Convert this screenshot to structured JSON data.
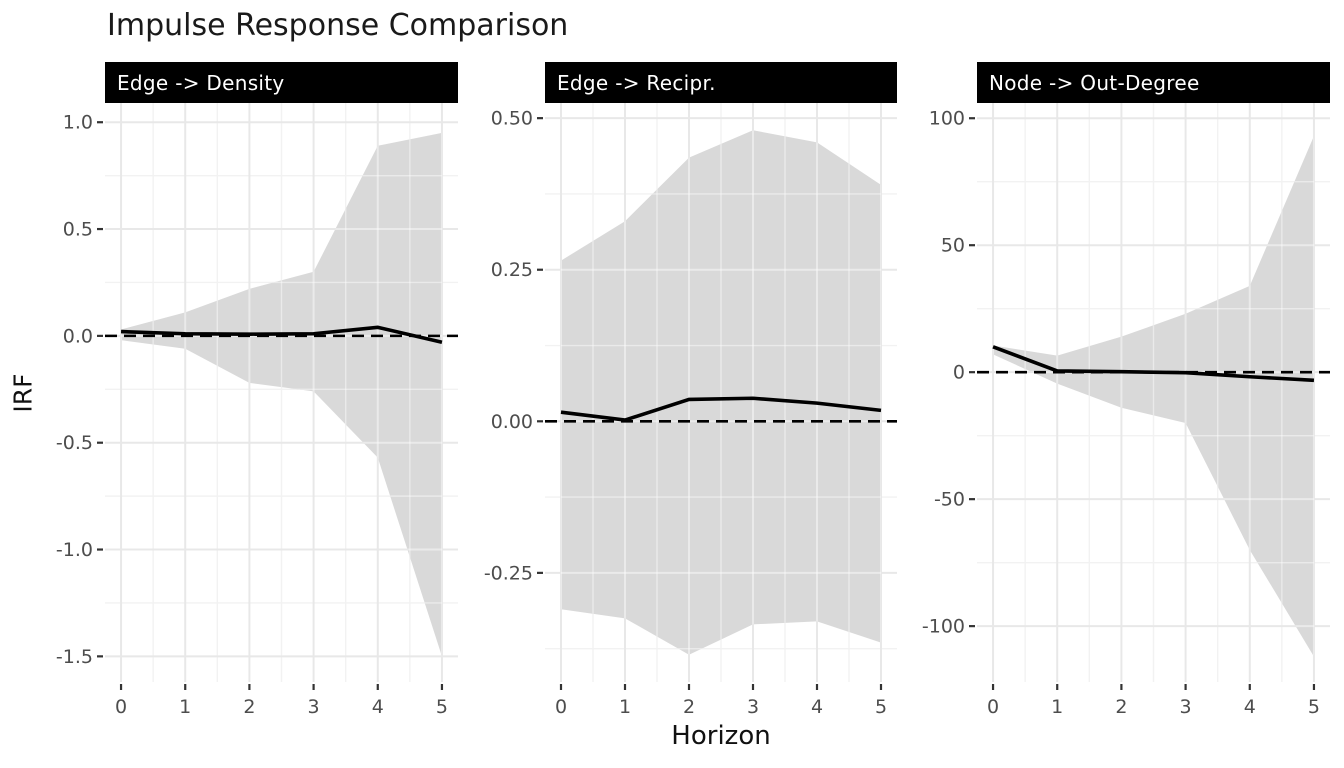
{
  "title": "Impulse Response Comparison",
  "x_axis_label": "Horizon",
  "y_axis_label": "IRF",
  "colors": {
    "strip_bg": "#000000",
    "strip_text": "#ffffff",
    "ribbon": "#d9d9d9",
    "line": "#000000",
    "grid_major": "#e8e8e8",
    "grid_minor": "#f2f2f2",
    "tick_label": "#4d4d4d",
    "tick_mark": "#333333",
    "title_text": "#1a1a1a"
  },
  "chart_data": [
    {
      "type": "line+ribbon",
      "facet_label": "Edge -> Density",
      "x": [
        0,
        1,
        2,
        3,
        4,
        5
      ],
      "x_tick_labels": [
        "0",
        "1",
        "2",
        "3",
        "4",
        "5"
      ],
      "xlim": [
        -0.25,
        5.25
      ],
      "irf": [
        0.02,
        0.01,
        0.008,
        0.01,
        0.04,
        -0.03
      ],
      "ci_upper": [
        0.03,
        0.11,
        0.22,
        0.3,
        0.89,
        0.95
      ],
      "ci_lower": [
        -0.02,
        -0.06,
        -0.22,
        -0.26,
        -0.57,
        -1.5
      ],
      "y_tick_values": [
        1.0,
        0.5,
        0.0,
        -0.5,
        -1.0,
        -1.5
      ],
      "y_tick_labels": [
        "1.0",
        "0.5",
        "0.0",
        "-0.5",
        "-1.0",
        "-1.5"
      ],
      "ylim": [
        -1.62,
        1.09
      ],
      "zero_line": 0
    },
    {
      "type": "line+ribbon",
      "facet_label": "Edge -> Recipr.",
      "x": [
        0,
        1,
        2,
        3,
        4,
        5
      ],
      "x_tick_labels": [
        "0",
        "1",
        "2",
        "3",
        "4",
        "5"
      ],
      "xlim": [
        -0.25,
        5.25
      ],
      "irf": [
        0.015,
        0.002,
        0.036,
        0.038,
        0.03,
        0.018
      ],
      "ci_upper": [
        0.265,
        0.33,
        0.435,
        0.48,
        0.46,
        0.39
      ],
      "ci_lower": [
        -0.31,
        -0.325,
        -0.385,
        -0.335,
        -0.33,
        -0.365
      ],
      "y_tick_values": [
        0.5,
        0.25,
        0.0,
        -0.25
      ],
      "y_tick_labels": [
        "0.50",
        "0.25",
        "0.00",
        "-0.25"
      ],
      "ylim": [
        -0.43,
        0.525
      ],
      "zero_line": 0
    },
    {
      "type": "line+ribbon",
      "facet_label": "Node -> Out-Degree",
      "x": [
        0,
        1,
        2,
        3,
        4,
        5
      ],
      "x_tick_labels": [
        "0",
        "1",
        "2",
        "3",
        "4",
        "5"
      ],
      "xlim": [
        -0.25,
        5.25
      ],
      "irf": [
        10,
        0.5,
        0.2,
        -0.2,
        -1.8,
        -3.2
      ],
      "ci_upper": [
        10.5,
        6.5,
        14,
        23,
        34,
        93
      ],
      "ci_lower": [
        7,
        -4.5,
        -14,
        -20,
        -70,
        -112
      ],
      "y_tick_values": [
        100,
        50,
        0,
        -50,
        -100
      ],
      "y_tick_labels": [
        "100",
        "50",
        "0",
        "-50",
        "-100"
      ],
      "ylim": [
        -122,
        106
      ],
      "zero_line": 0
    }
  ]
}
